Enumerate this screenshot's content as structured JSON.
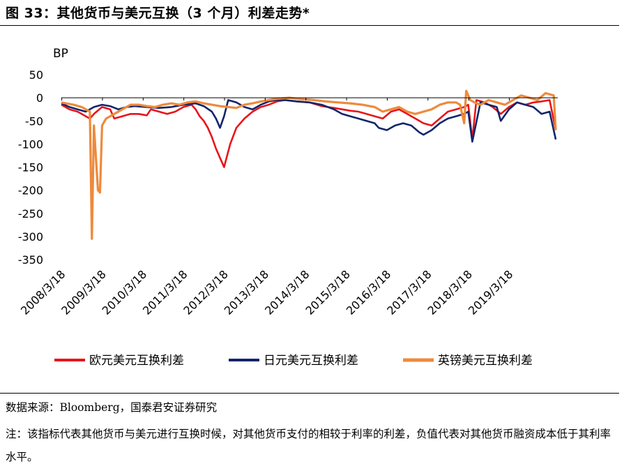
{
  "title": "图 33：其他货币与美元互换（3 个月）利差走势*",
  "source": "数据来源：Bloomberg，国泰君安证券研究",
  "note": "注：该指标代表其他货币与美元进行互换时候，对其他货币支付的相较于利率的利差，负值代表对其他货币融资成本低于其利率水平。",
  "chart_data": {
    "type": "line",
    "ylabel": "BP",
    "ylim": [
      -350,
      50
    ],
    "yticks": [
      50,
      0,
      -50,
      -100,
      -150,
      -200,
      -250,
      -300,
      -350
    ],
    "xlim": [
      2008.2,
      2020.4
    ],
    "xticks": [
      {
        "label": "2008/3/18",
        "value": 2008.21
      },
      {
        "label": "2009/3/18",
        "value": 2009.21
      },
      {
        "label": "2010/3/18",
        "value": 2010.21
      },
      {
        "label": "2011/3/18",
        "value": 2011.21
      },
      {
        "label": "2012/3/18",
        "value": 2012.21
      },
      {
        "label": "2013/3/18",
        "value": 2013.21
      },
      {
        "label": "2014/3/18",
        "value": 2014.21
      },
      {
        "label": "2015/3/18",
        "value": 2015.21
      },
      {
        "label": "2016/3/18",
        "value": 2016.21
      },
      {
        "label": "2017/3/18",
        "value": 2017.21
      },
      {
        "label": "2018/3/18",
        "value": 2018.21
      },
      {
        "label": "2019/3/18",
        "value": 2019.21
      }
    ],
    "series": [
      {
        "name": "欧元美元互换利差",
        "color": "#e8141a",
        "x": [
          2008.2,
          2008.4,
          2008.6,
          2008.8,
          2008.9,
          2009.0,
          2009.2,
          2009.4,
          2009.5,
          2009.7,
          2009.9,
          2010.1,
          2010.3,
          2010.4,
          2010.6,
          2010.8,
          2011.0,
          2011.2,
          2011.4,
          2011.5,
          2011.6,
          2011.7,
          2011.8,
          2011.9,
          2012.0,
          2012.1,
          2012.2,
          2012.35,
          2012.5,
          2012.7,
          2012.9,
          2013.1,
          2013.3,
          2013.5,
          2013.7,
          2014.0,
          2014.3,
          2014.6,
          2014.9,
          2015.1,
          2015.3,
          2015.5,
          2015.7,
          2015.9,
          2016.1,
          2016.3,
          2016.5,
          2016.7,
          2016.9,
          2017.1,
          2017.3,
          2017.5,
          2017.7,
          2017.9,
          2018.1,
          2018.2,
          2018.3,
          2018.4,
          2018.6,
          2018.8,
          2019.0,
          2019.2,
          2019.4,
          2019.6,
          2019.8,
          2020.0,
          2020.2,
          2020.35
        ],
        "y": [
          -15,
          -25,
          -30,
          -40,
          -45,
          -35,
          -20,
          -25,
          -45,
          -40,
          -35,
          -35,
          -38,
          -25,
          -30,
          -35,
          -30,
          -20,
          -15,
          -25,
          -40,
          -50,
          -65,
          -85,
          -110,
          -130,
          -150,
          -100,
          -65,
          -45,
          -30,
          -20,
          -15,
          -8,
          -5,
          -8,
          -10,
          -18,
          -22,
          -25,
          -28,
          -30,
          -35,
          -40,
          -45,
          -30,
          -25,
          -35,
          -45,
          -55,
          -60,
          -45,
          -30,
          -25,
          -20,
          -15,
          -90,
          -5,
          -10,
          -20,
          -35,
          -20,
          -10,
          -15,
          -10,
          -8,
          -5,
          -70
        ]
      },
      {
        "name": "日元美元互换利差",
        "color": "#12256b",
        "x": [
          2008.2,
          2008.4,
          2008.6,
          2008.8,
          2009.0,
          2009.2,
          2009.4,
          2009.6,
          2009.8,
          2010.0,
          2010.3,
          2010.6,
          2010.9,
          2011.2,
          2011.5,
          2011.7,
          2011.9,
          2012.0,
          2012.1,
          2012.2,
          2012.3,
          2012.5,
          2012.7,
          2012.9,
          2013.1,
          2013.3,
          2013.5,
          2013.7,
          2014.0,
          2014.3,
          2014.6,
          2014.9,
          2015.1,
          2015.3,
          2015.5,
          2015.7,
          2015.9,
          2016.0,
          2016.2,
          2016.4,
          2016.6,
          2016.8,
          2017.0,
          2017.1,
          2017.3,
          2017.5,
          2017.7,
          2017.9,
          2018.1,
          2018.2,
          2018.3,
          2018.5,
          2018.7,
          2018.9,
          2019.0,
          2019.2,
          2019.4,
          2019.6,
          2019.8,
          2020.0,
          2020.2,
          2020.35
        ],
        "y": [
          -12,
          -20,
          -25,
          -30,
          -20,
          -15,
          -18,
          -25,
          -20,
          -18,
          -20,
          -22,
          -20,
          -15,
          -12,
          -18,
          -30,
          -45,
          -65,
          -40,
          -5,
          -10,
          -20,
          -25,
          -15,
          -8,
          -5,
          -5,
          -8,
          -10,
          -15,
          -25,
          -35,
          -40,
          -45,
          -50,
          -55,
          -65,
          -70,
          -60,
          -55,
          -60,
          -75,
          -80,
          -70,
          -55,
          -45,
          -40,
          -35,
          -30,
          -95,
          -10,
          -15,
          -20,
          -50,
          -25,
          -10,
          -15,
          -20,
          -35,
          -30,
          -90
        ]
      },
      {
        "name": "英镑美元互换利差",
        "color": "#ee8a3c",
        "x": [
          2008.2,
          2008.5,
          2008.7,
          2008.8,
          2008.9,
          2008.95,
          2009.0,
          2009.1,
          2009.15,
          2009.2,
          2009.3,
          2009.5,
          2009.7,
          2009.9,
          2010.1,
          2010.3,
          2010.5,
          2010.7,
          2010.9,
          2011.1,
          2011.3,
          2011.5,
          2011.7,
          2011.9,
          2012.1,
          2012.3,
          2012.5,
          2012.7,
          2012.9,
          2013.1,
          2013.3,
          2013.5,
          2013.8,
          2014.1,
          2014.4,
          2014.7,
          2015.0,
          2015.3,
          2015.6,
          2015.9,
          2016.1,
          2016.3,
          2016.5,
          2016.7,
          2016.9,
          2017.1,
          2017.3,
          2017.5,
          2017.7,
          2017.9,
          2018.0,
          2018.1,
          2018.15,
          2018.25,
          2018.35,
          2018.5,
          2018.7,
          2018.9,
          2019.1,
          2019.3,
          2019.5,
          2019.7,
          2019.9,
          2020.1,
          2020.3,
          2020.35
        ],
        "y": [
          -10,
          -15,
          -20,
          -25,
          -30,
          -305,
          -60,
          -200,
          -205,
          -60,
          -45,
          -35,
          -25,
          -15,
          -15,
          -18,
          -20,
          -15,
          -12,
          -15,
          -10,
          -8,
          -12,
          -15,
          -18,
          -20,
          -22,
          -15,
          -12,
          -8,
          -5,
          -2,
          0,
          -3,
          -5,
          -8,
          -10,
          -12,
          -15,
          -20,
          -30,
          -25,
          -20,
          -30,
          -35,
          -30,
          -25,
          -15,
          -10,
          -10,
          -15,
          -55,
          15,
          -5,
          -10,
          -15,
          -5,
          -10,
          -15,
          -5,
          5,
          0,
          -5,
          10,
          5,
          -70
        ]
      }
    ],
    "legend_position": "bottom"
  }
}
